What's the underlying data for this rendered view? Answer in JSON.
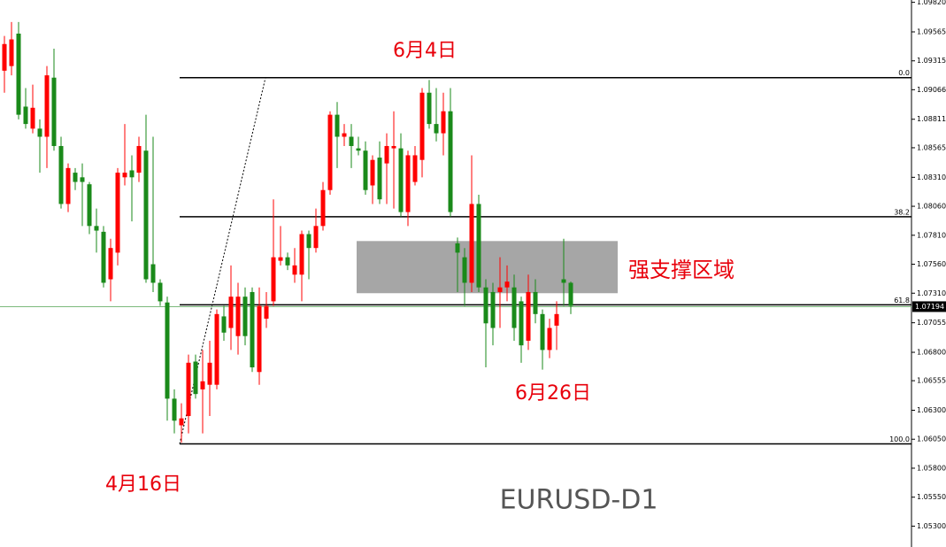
{
  "chart_data": {
    "type": "candlestick",
    "up_color": "#ff0000",
    "down_color": "#1a8a1a",
    "open": [
      1.0923,
      1.0927,
      1.0955,
      1.0892,
      1.0873,
      1.0873,
      1.0866,
      1.0917,
      1.0858,
      1.0808,
      1.0835,
      1.0831,
      1.0825,
      1.0789,
      1.0784,
      1.0743,
      1.0766,
      1.0831,
      1.0837,
      1.0835,
      1.0854,
      1.0756,
      1.074,
      1.0723,
      1.064,
      1.0617,
      1.0625,
      1.0672,
      1.0648,
      1.0652,
      1.0652,
      1.0711,
      1.0701,
      1.0694,
      1.0728,
      1.0732,
      1.0663,
      1.0709,
      1.0724,
      1.0759,
      1.0762,
      1.0747,
      1.0747,
      1.0782,
      1.077,
      1.0789,
      1.082,
      1.0885,
      1.0866,
      1.0866,
      1.0856,
      1.0854,
      1.0824,
      1.0848,
      1.0843,
      1.0856,
      1.0856,
      1.0801,
      1.0827,
      1.0846,
      1.0904,
      1.0877,
      1.0869,
      1.0888,
      1.0774,
      1.0762,
      1.074,
      1.0808,
      1.0736,
      1.0732,
      1.0732,
      1.0736,
      1.0736,
      1.0724,
      1.069,
      1.0732,
      1.0713,
      1.0682,
      1.0703,
      1.0743,
      1.074
    ],
    "high": [
      1.0953,
      1.0965,
      1.0965,
      1.0908,
      1.0911,
      1.0881,
      1.0927,
      1.0942,
      1.0866,
      1.0843,
      1.0839,
      1.0843,
      1.0827,
      1.0804,
      1.0789,
      1.0778,
      1.0839,
      1.0877,
      1.085,
      1.0866,
      1.0885,
      1.0866,
      1.0743,
      1.0728,
      1.0648,
      1.0636,
      1.0678,
      1.0678,
      1.0682,
      1.069,
      1.0717,
      1.072,
      1.0755,
      1.074,
      1.0736,
      1.0736,
      1.0736,
      1.0732,
      1.0812,
      1.0789,
      1.0766,
      1.077,
      1.0785,
      1.0785,
      1.0804,
      1.0827,
      1.0888,
      1.0896,
      1.0877,
      1.0877,
      1.0866,
      1.0862,
      1.085,
      1.0862,
      1.0869,
      1.0888,
      1.0869,
      1.0854,
      1.0858,
      1.0908,
      1.0915,
      1.0908,
      1.0904,
      1.0908,
      1.0779,
      1.077,
      1.085,
      1.0816,
      1.0743,
      1.074,
      1.0762,
      1.0755,
      1.0747,
      1.0728,
      1.0747,
      1.0743,
      1.0717,
      1.0709,
      1.0724,
      1.0778,
      1.0741
    ],
    "low": [
      1.0904,
      1.0919,
      1.0881,
      1.0873,
      1.0869,
      1.0835,
      1.0839,
      1.0854,
      1.0804,
      1.0801,
      1.082,
      1.0789,
      1.0782,
      1.0766,
      1.0736,
      1.0724,
      1.0755,
      1.0824,
      1.0793,
      1.0827,
      1.074,
      1.0732,
      1.072,
      1.0621,
      1.061,
      1.0602,
      1.061,
      1.064,
      1.061,
      1.0625,
      1.0648,
      1.069,
      1.0682,
      1.0678,
      1.0686,
      1.0663,
      1.0652,
      1.0701,
      1.072,
      1.0755,
      1.0751,
      1.074,
      1.0724,
      1.0743,
      1.0766,
      1.0785,
      1.0816,
      1.0839,
      1.0858,
      1.0839,
      1.085,
      1.0816,
      1.0808,
      1.0808,
      1.0808,
      1.0804,
      1.0797,
      1.0789,
      1.0824,
      1.0831,
      1.0873,
      1.0862,
      1.085,
      1.0797,
      1.0732,
      1.072,
      1.0732,
      1.0732,
      1.0667,
      1.0686,
      1.0701,
      1.0724,
      1.069,
      1.0671,
      1.0682,
      1.0705,
      1.0665,
      1.0675,
      1.0682,
      1.072,
      1.0713
    ],
    "close": [
      1.0946,
      1.095,
      1.0885,
      1.0877,
      1.0891,
      1.0866,
      1.0919,
      1.0858,
      1.0808,
      1.0839,
      1.0827,
      1.0827,
      1.0789,
      1.0785,
      1.074,
      1.077,
      1.0835,
      1.0835,
      1.0831,
      1.0858,
      1.0743,
      1.074,
      1.0724,
      1.064,
      1.0621,
      1.0623,
      1.0671,
      1.0644,
      1.0655,
      1.0671,
      1.0713,
      1.0697,
      1.0728,
      1.0728,
      1.0694,
      1.0667,
      1.072,
      1.072,
      1.0762,
      1.0762,
      1.0755,
      1.0755,
      1.0782,
      1.077,
      1.0789,
      1.082,
      1.0885,
      1.0866,
      1.0869,
      1.0858,
      1.0854,
      1.082,
      1.0846,
      1.0812,
      1.0858,
      1.0858,
      1.0801,
      1.085,
      1.085,
      1.0904,
      1.0877,
      1.0869,
      1.0888,
      1.0801,
      1.0766,
      1.074,
      1.0808,
      1.0736,
      1.0705,
      1.0701,
      1.0736,
      1.0741,
      1.0701,
      1.0686,
      1.0732,
      1.0713,
      1.0682,
      1.0701,
      1.0713,
      1.074,
      1.072
    ],
    "ylim": [
      1.0512,
      1.0984
    ],
    "yticks": [
      {
        "value": 1.0982,
        "label": "1.09820"
      },
      1.09565,
      1.09315,
      1.09066,
      1.08811,
      1.08565,
      {
        "value": 1.0831,
        "label": "1.08310"
      },
      {
        "value": 1.0806,
        "label": "1.08060"
      },
      {
        "value": 1.0781,
        "label": "1.07810"
      },
      {
        "value": 1.0756,
        "label": "1.07560"
      },
      {
        "value": 1.0731,
        "label": "1.07310"
      },
      1.07055,
      {
        "value": 1.068,
        "label": "1.06800"
      },
      1.06555,
      {
        "value": 1.063,
        "label": "1.06300"
      },
      {
        "value": 1.0605,
        "label": "1.06050"
      },
      {
        "value": 1.058,
        "label": "1.05800"
      },
      {
        "value": 1.0555,
        "label": "1.05550"
      },
      {
        "value": 1.053,
        "label": "1.05300"
      }
    ],
    "current_price": 1.07194,
    "fib_levels": [
      {
        "label": "0.0",
        "price": 1.0917
      },
      {
        "label": "38.2",
        "price": 1.0797
      },
      {
        "label": "61.8",
        "price": 1.0721
      },
      {
        "label": "100.0",
        "price": 1.0601
      }
    ],
    "support_zone": {
      "label": "强支撑区域",
      "top": 1.0776,
      "bottom": 1.0731
    },
    "annotations": [
      "6月4日",
      "6月26日",
      "4月16日"
    ],
    "symbol": "EURUSD-D1"
  }
}
